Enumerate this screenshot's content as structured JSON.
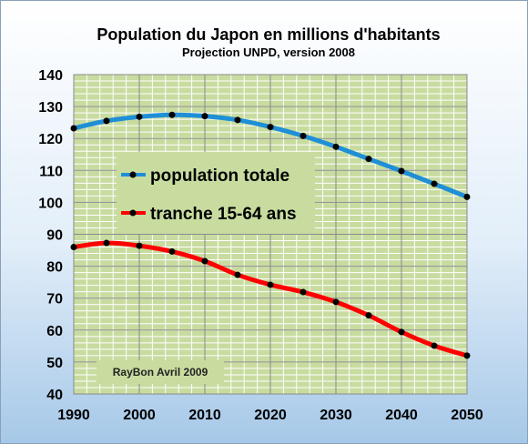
{
  "chart_data": {
    "type": "line",
    "title": "Population du Japon en millions d'habitants",
    "subtitle": "Projection UNPD, version 2008",
    "x": [
      1990,
      1995,
      2000,
      2005,
      2010,
      2015,
      2020,
      2025,
      2030,
      2035,
      2040,
      2045,
      2050
    ],
    "series": [
      {
        "name": "population totale",
        "color": "#1f8fd6",
        "values": [
          123.2,
          125.5,
          126.8,
          127.4,
          127.0,
          125.8,
          123.6,
          120.8,
          117.4,
          113.6,
          109.8,
          105.8,
          101.7
        ]
      },
      {
        "name": "tranche 15-64 ans",
        "color": "#ff0000",
        "values": [
          86.0,
          87.3,
          86.4,
          84.6,
          81.6,
          77.3,
          74.2,
          71.9,
          68.8,
          64.6,
          59.4,
          55.1,
          52.0
        ]
      }
    ],
    "xticks": [
      "1990",
      "2000",
      "2010",
      "2020",
      "2030",
      "2040",
      "2050"
    ],
    "yticks": [
      "40",
      "50",
      "60",
      "70",
      "80",
      "90",
      "100",
      "110",
      "120",
      "130",
      "140"
    ],
    "ylim": [
      40,
      140
    ],
    "xlim": [
      1990,
      2050
    ],
    "grid": true,
    "legend_position": "upper-left-inside",
    "plot_background": "#c8dca0",
    "annotation": "RayBon Avril 2009"
  }
}
